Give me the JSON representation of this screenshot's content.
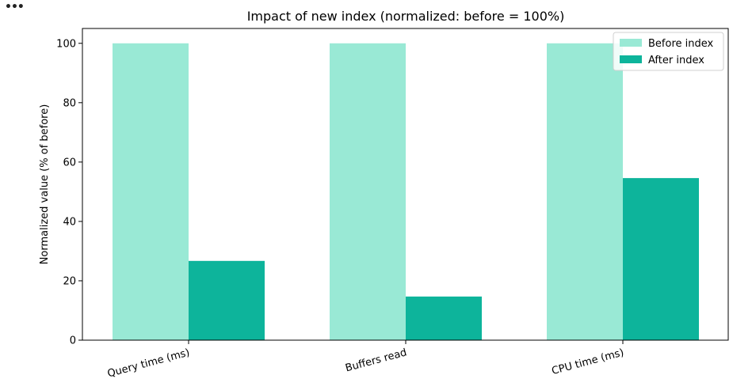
{
  "toolbar": {
    "more_label": "•••"
  },
  "chart_data": {
    "type": "bar",
    "title": "Impact of new index (normalized: before = 100%)",
    "xlabel": "",
    "ylabel": "Normalized value (% of before)",
    "categories": [
      "Query time (ms)",
      "Buffers read",
      "CPU time (ms)"
    ],
    "series": [
      {
        "name": "Before index",
        "values": [
          100,
          100,
          100
        ],
        "color": "#99e9d5"
      },
      {
        "name": "After index",
        "values": [
          26.7,
          14.7,
          54.6
        ],
        "color": "#0db49b"
      }
    ],
    "ylim": [
      0,
      105
    ],
    "yticks": [
      0,
      20,
      40,
      60,
      80,
      100
    ],
    "grid": false,
    "legend_position": "top-right"
  }
}
